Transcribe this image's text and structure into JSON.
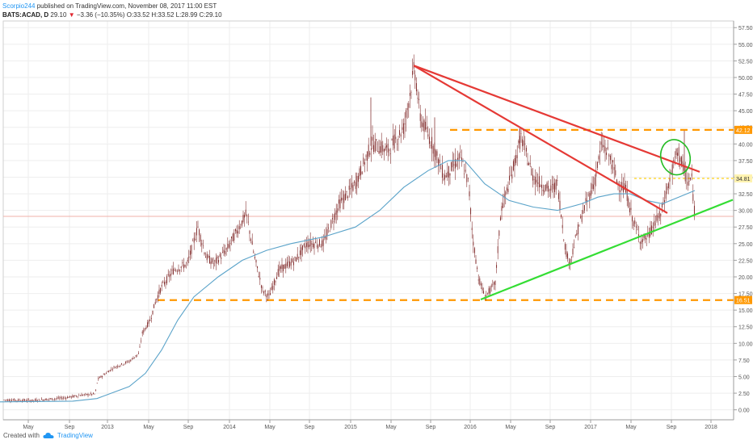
{
  "header": {
    "author": "Scorpio244",
    "published": "published on TradingView.com, November 08, 2017 11:00 EST",
    "symbol": "BATS:ACAD, D",
    "last": "29.10",
    "change_arrow": "▼",
    "change": "−3.36 (−10.35%)",
    "ohlc": "O:33.52 H:33.52 L:28.99 C:29.10"
  },
  "footer": {
    "created_with": "Created with",
    "brand": "TradingView",
    "logo_icon": "tradingview-cloud-icon"
  },
  "colors": {
    "candle": "#7a1f1f",
    "ma": "#5aa3c9",
    "trend_red": "#e53935",
    "trend_green": "#33dd33",
    "level_orange": "#ff9800",
    "level_yellow": "#ffe066",
    "last_price_line": "#f0b0a8"
  },
  "chart_data": {
    "type": "candlestick",
    "x_tick_labels": [
      "May",
      "Sep",
      "2013",
      "May",
      "Sep",
      "2014",
      "May",
      "Sep",
      "2015",
      "May",
      "Sep",
      "2016",
      "May",
      "Sep",
      "2017",
      "May",
      "Sep",
      "2018"
    ],
    "y_tick_labels": [
      "57.50",
      "55.00",
      "52.50",
      "50.00",
      "47.50",
      "45.00",
      "42.50",
      "40.00",
      "37.50",
      "35.00",
      "32.50",
      "30.00",
      "27.50",
      "25.00",
      "22.50",
      "20.00",
      "17.50",
      "15.00",
      "12.50",
      "10.00",
      "7.50",
      "5.00",
      "2.50",
      "0.00"
    ],
    "ylim": [
      -1.5,
      58.5
    ],
    "price_path": [
      [
        0,
        1.5
      ],
      [
        40,
        1.4
      ],
      [
        80,
        1.8
      ],
      [
        100,
        2.2
      ],
      [
        118,
        2.4
      ],
      [
        121,
        4.6
      ],
      [
        140,
        6.3
      ],
      [
        160,
        7.3
      ],
      [
        172,
        8.5
      ],
      [
        176,
        11.5
      ],
      [
        186,
        13.5
      ],
      [
        193,
        16.5
      ],
      [
        200,
        18.5
      ],
      [
        215,
        21
      ],
      [
        232,
        22
      ],
      [
        245,
        27.5
      ],
      [
        255,
        23
      ],
      [
        265,
        22
      ],
      [
        280,
        24
      ],
      [
        305,
        29.5
      ],
      [
        315,
        23
      ],
      [
        325,
        18
      ],
      [
        333,
        17
      ],
      [
        345,
        21
      ],
      [
        365,
        22.5
      ],
      [
        380,
        25
      ],
      [
        400,
        25
      ],
      [
        420,
        31
      ],
      [
        440,
        34
      ],
      [
        460,
        40
      ],
      [
        480,
        39
      ],
      [
        500,
        42.5
      ],
      [
        513,
        51.5
      ],
      [
        520,
        44
      ],
      [
        535,
        40
      ],
      [
        550,
        35
      ],
      [
        570,
        38
      ],
      [
        580,
        34
      ],
      [
        585,
        26
      ],
      [
        592,
        20
      ],
      [
        600,
        17
      ],
      [
        613,
        19
      ],
      [
        620,
        30
      ],
      [
        630,
        34
      ],
      [
        645,
        41
      ],
      [
        660,
        35
      ],
      [
        680,
        33
      ],
      [
        690,
        34
      ],
      [
        700,
        24
      ],
      [
        705,
        22
      ],
      [
        715,
        27
      ],
      [
        725,
        31
      ],
      [
        735,
        34
      ],
      [
        745,
        40
      ],
      [
        755,
        38
      ],
      [
        765,
        34
      ],
      [
        775,
        33
      ],
      [
        780,
        30
      ],
      [
        785,
        28
      ],
      [
        793,
        25.5
      ],
      [
        802,
        26
      ],
      [
        810,
        28
      ],
      [
        818,
        29.5
      ],
      [
        823,
        32
      ],
      [
        830,
        35
      ],
      [
        836,
        38
      ],
      [
        840,
        39
      ],
      [
        846,
        36
      ],
      [
        852,
        34
      ],
      [
        856,
        35
      ],
      [
        860,
        29.1
      ]
    ],
    "moving_average": [
      [
        0,
        1.2
      ],
      [
        90,
        1.3
      ],
      [
        120,
        1.7
      ],
      [
        160,
        3.5
      ],
      [
        180,
        5.5
      ],
      [
        200,
        9
      ],
      [
        220,
        13.5
      ],
      [
        240,
        17
      ],
      [
        270,
        20
      ],
      [
        300,
        22.5
      ],
      [
        330,
        24
      ],
      [
        360,
        25
      ],
      [
        400,
        26
      ],
      [
        440,
        27.5
      ],
      [
        470,
        30
      ],
      [
        500,
        33.5
      ],
      [
        530,
        36
      ],
      [
        555,
        37.5
      ],
      [
        575,
        37.5
      ],
      [
        600,
        34
      ],
      [
        630,
        31.5
      ],
      [
        660,
        30.5
      ],
      [
        690,
        30
      ],
      [
        720,
        31
      ],
      [
        740,
        32
      ],
      [
        760,
        32.5
      ],
      [
        780,
        32.5
      ],
      [
        800,
        31.5
      ],
      [
        820,
        31
      ],
      [
        840,
        32
      ],
      [
        860,
        33
      ]
    ],
    "annotations": {
      "red_trendline_1": {
        "from": [
          512,
          51.8
        ],
        "to": [
          866,
          35.8
        ]
      },
      "red_trendline_2": {
        "from": [
          512,
          51.8
        ],
        "to": [
          826,
          29.6
        ]
      },
      "green_trendline": {
        "from": [
          595,
          16.6
        ],
        "to": [
          907,
          31.6
        ]
      },
      "resistance_level": {
        "value": 42.12,
        "from_x": 557
      },
      "support_level": {
        "value": 16.51,
        "from_x": 195
      },
      "yellow_level": {
        "value": 34.81,
        "from_x": 785
      },
      "last_price": 29.1,
      "ellipse_center": [
        836,
        38.0
      ]
    },
    "price_labels": {
      "resistance": "42.12",
      "yellow": "34.81",
      "support": "16.51"
    }
  }
}
